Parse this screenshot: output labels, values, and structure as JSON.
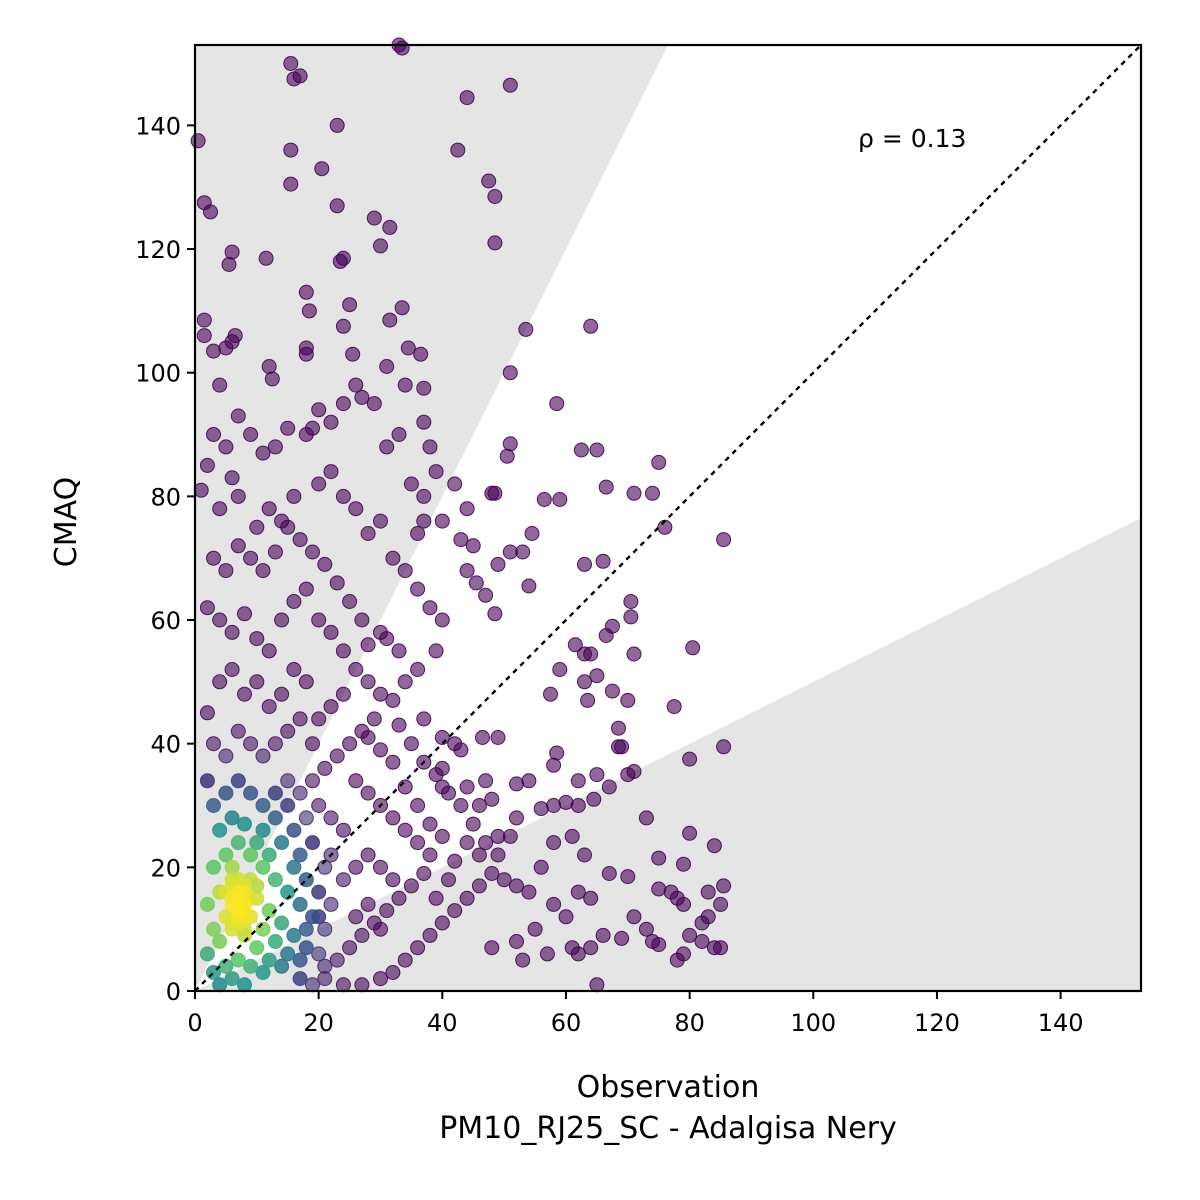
{
  "chart_data": {
    "type": "scatter",
    "title": "",
    "xlabel": "Observation",
    "xlabel_sub": "PM10_RJ25_SC - Adalgisa Nery",
    "ylabel": "CMAQ",
    "xlim": [
      0,
      153
    ],
    "ylim": [
      0,
      153
    ],
    "xticks": [
      0,
      20,
      40,
      60,
      80,
      100,
      120,
      140
    ],
    "yticks": [
      0,
      20,
      40,
      60,
      80,
      100,
      120,
      140
    ],
    "annotation": "ρ = 0.13",
    "identity_line": true,
    "factor_of_two_shading": true,
    "colormap": "viridis (point density)",
    "colors": {
      "low_density": "#440154",
      "mid_density": "#21918c",
      "high_density": "#fde725",
      "shading": "#e5e5e5"
    },
    "points": [
      [
        0.5,
        137.5
      ],
      [
        1.5,
        127.5
      ],
      [
        2.5,
        126
      ],
      [
        5.5,
        117.5
      ],
      [
        6,
        119.5
      ],
      [
        11.5,
        118.5
      ],
      [
        15.5,
        150
      ],
      [
        16,
        147.5
      ],
      [
        17,
        148
      ],
      [
        15.5,
        136
      ],
      [
        15.5,
        130.5
      ],
      [
        20.5,
        133
      ],
      [
        23,
        140
      ],
      [
        23,
        127
      ],
      [
        23.5,
        118
      ],
      [
        24,
        118.5
      ],
      [
        29,
        125
      ],
      [
        30,
        120.5
      ],
      [
        31.5,
        123.5
      ],
      [
        33,
        153
      ],
      [
        33.5,
        152.5
      ],
      [
        42.5,
        136
      ],
      [
        44,
        144.5
      ],
      [
        47.5,
        131
      ],
      [
        48.5,
        128.5
      ],
      [
        48.5,
        121
      ],
      [
        51,
        146.5
      ],
      [
        1.5,
        108.5
      ],
      [
        1.5,
        106
      ],
      [
        3,
        103.5
      ],
      [
        5,
        104
      ],
      [
        6,
        105
      ],
      [
        6.5,
        106
      ],
      [
        4,
        98
      ],
      [
        12,
        101
      ],
      [
        12.5,
        99
      ],
      [
        18,
        113
      ],
      [
        18.5,
        110
      ],
      [
        24,
        107.5
      ],
      [
        25,
        111
      ],
      [
        18,
        104
      ],
      [
        18,
        103
      ],
      [
        25.5,
        103
      ],
      [
        31.5,
        108.5
      ],
      [
        33.5,
        110.5
      ],
      [
        31,
        101
      ],
      [
        34.5,
        104
      ],
      [
        36.5,
        103
      ],
      [
        37,
        97.5
      ],
      [
        34,
        98
      ],
      [
        53.5,
        107
      ],
      [
        64,
        107.5
      ],
      [
        51,
        100
      ],
      [
        58.5,
        95
      ],
      [
        51,
        88.5
      ],
      [
        50.5,
        86.5
      ],
      [
        62.5,
        87.5
      ],
      [
        65,
        87.5
      ],
      [
        75,
        85.5
      ],
      [
        71,
        80.5
      ],
      [
        74,
        80.5
      ],
      [
        66.5,
        81.5
      ],
      [
        56.5,
        79.5
      ],
      [
        59,
        79.5
      ],
      [
        48,
        80.5
      ],
      [
        48.5,
        80.5
      ],
      [
        76,
        75
      ],
      [
        85.5,
        73
      ],
      [
        54.5,
        74
      ],
      [
        51,
        71
      ],
      [
        53,
        71
      ],
      [
        49,
        69
      ],
      [
        44,
        68
      ],
      [
        45.5,
        66
      ],
      [
        47,
        64
      ],
      [
        48.5,
        61
      ],
      [
        54,
        65.5
      ],
      [
        63,
        69
      ],
      [
        66,
        69.5
      ],
      [
        70.5,
        63
      ],
      [
        70.5,
        60.5
      ],
      [
        61.5,
        56
      ],
      [
        66.5,
        57.5
      ],
      [
        67.5,
        59
      ],
      [
        80.5,
        55.5
      ],
      [
        63,
        54.5
      ],
      [
        64,
        54.5
      ],
      [
        71,
        54.5
      ],
      [
        65,
        51
      ],
      [
        67.5,
        48.5
      ],
      [
        63,
        50
      ],
      [
        63.5,
        47
      ],
      [
        68.5,
        42.5
      ],
      [
        69,
        39.5
      ],
      [
        68.5,
        39.5
      ],
      [
        70,
        47
      ],
      [
        77.5,
        46
      ],
      [
        59,
        52
      ],
      [
        57.5,
        48
      ],
      [
        58.5,
        38.5
      ],
      [
        58,
        36.5
      ],
      [
        62,
        34
      ],
      [
        65,
        35
      ],
      [
        70,
        35
      ],
      [
        71,
        35.5
      ],
      [
        80,
        37.5
      ],
      [
        85.5,
        39.5
      ],
      [
        49,
        41
      ],
      [
        46.5,
        41
      ],
      [
        43,
        39
      ],
      [
        42,
        40
      ],
      [
        37,
        44
      ],
      [
        40,
        41
      ],
      [
        52,
        33.5
      ],
      [
        54,
        34
      ],
      [
        48,
        31
      ],
      [
        47,
        34
      ],
      [
        56,
        29.5
      ],
      [
        58,
        30
      ],
      [
        60,
        30.5
      ],
      [
        62,
        30
      ],
      [
        64.5,
        31
      ],
      [
        67,
        33
      ],
      [
        52,
        28
      ],
      [
        51,
        25
      ],
      [
        49,
        25
      ],
      [
        73,
        28
      ],
      [
        80,
        25.5
      ],
      [
        84,
        23.5
      ],
      [
        75,
        21.5
      ],
      [
        79,
        20.5
      ],
      [
        67,
        19
      ],
      [
        70,
        18.5
      ],
      [
        75,
        16.5
      ],
      [
        77,
        16
      ],
      [
        78,
        15
      ],
      [
        79,
        14
      ],
      [
        83,
        16
      ],
      [
        85.5,
        17
      ],
      [
        85,
        14
      ],
      [
        83,
        12
      ],
      [
        82,
        11
      ],
      [
        80,
        9
      ],
      [
        82,
        8
      ],
      [
        85,
        7
      ],
      [
        84,
        7
      ],
      [
        79,
        6
      ],
      [
        78,
        5
      ],
      [
        73,
        10
      ],
      [
        74,
        8
      ],
      [
        75,
        7.5
      ],
      [
        69,
        8.5
      ],
      [
        71,
        12
      ],
      [
        66,
        9
      ],
      [
        64,
        7
      ],
      [
        62,
        6
      ],
      [
        61,
        7
      ],
      [
        57,
        6
      ],
      [
        55,
        10
      ],
      [
        52,
        8
      ],
      [
        53,
        5
      ],
      [
        48,
        7
      ],
      [
        65,
        1
      ],
      [
        56,
        20
      ],
      [
        58,
        24
      ],
      [
        61,
        25
      ],
      [
        63,
        22
      ],
      [
        58,
        14
      ],
      [
        60,
        12
      ],
      [
        62,
        16
      ],
      [
        64,
        15
      ],
      [
        54,
        16
      ],
      [
        52,
        17
      ],
      [
        50,
        18
      ],
      [
        46,
        22
      ],
      [
        44,
        24
      ],
      [
        46,
        30
      ],
      [
        44,
        33
      ],
      [
        40,
        33
      ],
      [
        40,
        36
      ],
      [
        42,
        82
      ],
      [
        44,
        78
      ],
      [
        45,
        72
      ],
      [
        43,
        73
      ],
      [
        40,
        76
      ],
      [
        37,
        76
      ],
      [
        36,
        74
      ],
      [
        37,
        80
      ],
      [
        39,
        84
      ],
      [
        35,
        82
      ],
      [
        38,
        88
      ],
      [
        37,
        92
      ],
      [
        33,
        90
      ],
      [
        31,
        88
      ],
      [
        29,
        95
      ],
      [
        27,
        96
      ],
      [
        26,
        98
      ],
      [
        24,
        95
      ],
      [
        22,
        92
      ],
      [
        20,
        94
      ],
      [
        19,
        91
      ],
      [
        18,
        90
      ],
      [
        15,
        91
      ],
      [
        13,
        88
      ],
      [
        11,
        87
      ],
      [
        9,
        90
      ],
      [
        7,
        93
      ],
      [
        5,
        88
      ],
      [
        3,
        90
      ],
      [
        2,
        85
      ],
      [
        1,
        81
      ],
      [
        4,
        78
      ],
      [
        6,
        83
      ],
      [
        7,
        80
      ],
      [
        10,
        75
      ],
      [
        12,
        78
      ],
      [
        14,
        76
      ],
      [
        16,
        80
      ],
      [
        20,
        82
      ],
      [
        22,
        84
      ],
      [
        24,
        80
      ],
      [
        26,
        78
      ],
      [
        28,
        74
      ],
      [
        30,
        76
      ],
      [
        32,
        70
      ],
      [
        34,
        68
      ],
      [
        36,
        65
      ],
      [
        38,
        62
      ],
      [
        40,
        60
      ],
      [
        39,
        55
      ],
      [
        36,
        52
      ],
      [
        34,
        50
      ],
      [
        32,
        47
      ],
      [
        33,
        43
      ],
      [
        35,
        40
      ],
      [
        37,
        37
      ],
      [
        39,
        35
      ],
      [
        41,
        32
      ],
      [
        43,
        30
      ],
      [
        45,
        27
      ],
      [
        47,
        24
      ],
      [
        49,
        22
      ],
      [
        48,
        19
      ],
      [
        46,
        17
      ],
      [
        44,
        15
      ],
      [
        42,
        13
      ],
      [
        40,
        11
      ],
      [
        38,
        9
      ],
      [
        36,
        7
      ],
      [
        34,
        5
      ],
      [
        32,
        3
      ],
      [
        30,
        2
      ],
      [
        27,
        1
      ],
      [
        24,
        1
      ],
      [
        21,
        2
      ],
      [
        19,
        1
      ],
      [
        17,
        2
      ],
      [
        28,
        56
      ],
      [
        31,
        57
      ],
      [
        33,
        55
      ],
      [
        30,
        58
      ],
      [
        27,
        60
      ],
      [
        25,
        63
      ],
      [
        23,
        66
      ],
      [
        21,
        69
      ],
      [
        19,
        71
      ],
      [
        17,
        73
      ],
      [
        15,
        75
      ],
      [
        13,
        71
      ],
      [
        11,
        68
      ],
      [
        9,
        70
      ],
      [
        7,
        72
      ],
      [
        5,
        68
      ],
      [
        3,
        70
      ],
      [
        2,
        62
      ],
      [
        4,
        60
      ],
      [
        6,
        58
      ],
      [
        8,
        61
      ],
      [
        10,
        57
      ],
      [
        12,
        55
      ],
      [
        14,
        60
      ],
      [
        16,
        63
      ],
      [
        18,
        65
      ],
      [
        20,
        60
      ],
      [
        22,
        58
      ],
      [
        24,
        55
      ],
      [
        26,
        52
      ],
      [
        28,
        50
      ],
      [
        30,
        48
      ],
      [
        29,
        44
      ],
      [
        27,
        42
      ],
      [
        25,
        40
      ],
      [
        23,
        38
      ],
      [
        21,
        36
      ],
      [
        19,
        34
      ],
      [
        17,
        32
      ],
      [
        15,
        30
      ],
      [
        13,
        28
      ],
      [
        11,
        26
      ],
      [
        26,
        34
      ],
      [
        28,
        32
      ],
      [
        30,
        30
      ],
      [
        32,
        28
      ],
      [
        34,
        26
      ],
      [
        36,
        24
      ],
      [
        38,
        22
      ],
      [
        37,
        19
      ],
      [
        35,
        17
      ],
      [
        33,
        15
      ],
      [
        31,
        13
      ],
      [
        29,
        11
      ],
      [
        27,
        9
      ],
      [
        25,
        7
      ],
      [
        23,
        5
      ],
      [
        21,
        4
      ],
      [
        34,
        33
      ],
      [
        32,
        37
      ],
      [
        30,
        39
      ],
      [
        28,
        41
      ],
      [
        36,
        30
      ],
      [
        38,
        27
      ],
      [
        40,
        25
      ],
      [
        42,
        21
      ],
      [
        41,
        18
      ],
      [
        39,
        15
      ],
      [
        24,
        48
      ],
      [
        22,
        46
      ],
      [
        20,
        44
      ],
      [
        18,
        50
      ],
      [
        16,
        52
      ],
      [
        14,
        48
      ],
      [
        12,
        46
      ],
      [
        10,
        50
      ],
      [
        8,
        48
      ],
      [
        6,
        52
      ],
      [
        4,
        50
      ],
      [
        2,
        45
      ],
      [
        3,
        40
      ],
      [
        5,
        38
      ],
      [
        7,
        42
      ],
      [
        9,
        40
      ],
      [
        11,
        38
      ],
      [
        13,
        40
      ],
      [
        15,
        42
      ],
      [
        17,
        44
      ],
      [
        19,
        40
      ],
      [
        21,
        20
      ],
      [
        19,
        24
      ],
      [
        17,
        22
      ],
      [
        22,
        14
      ],
      [
        20,
        12
      ],
      [
        18,
        10
      ],
      [
        24,
        18
      ],
      [
        26,
        20
      ],
      [
        28,
        22
      ],
      [
        30,
        20
      ],
      [
        32,
        18
      ],
      [
        26,
        12
      ],
      [
        28,
        14
      ],
      [
        30,
        10
      ],
      [
        24,
        26
      ],
      [
        22,
        28
      ],
      [
        20,
        30
      ],
      [
        18,
        28
      ],
      [
        16,
        26
      ],
      [
        2,
        34
      ],
      [
        3,
        30
      ],
      [
        5,
        32
      ],
      [
        7,
        34
      ],
      [
        9,
        32
      ],
      [
        11,
        30
      ],
      [
        13,
        32
      ],
      [
        15,
        34
      ],
      [
        4,
        26
      ],
      [
        6,
        28
      ],
      [
        8,
        27
      ],
      [
        10,
        24
      ],
      [
        12,
        22
      ],
      [
        14,
        24
      ],
      [
        16,
        20
      ],
      [
        18,
        18
      ],
      [
        20,
        16
      ],
      [
        22,
        22
      ],
      [
        3,
        20
      ],
      [
        5,
        22
      ],
      [
        7,
        24
      ],
      [
        9,
        22
      ],
      [
        11,
        20
      ],
      [
        13,
        18
      ],
      [
        15,
        16
      ],
      [
        17,
        14
      ],
      [
        19,
        12
      ],
      [
        21,
        10
      ],
      [
        2,
        14
      ],
      [
        4,
        16
      ],
      [
        6,
        18
      ],
      [
        8,
        17
      ],
      [
        10,
        15
      ],
      [
        12,
        13
      ],
      [
        14,
        11
      ],
      [
        16,
        9
      ],
      [
        18,
        7
      ],
      [
        20,
        6
      ],
      [
        3,
        10
      ],
      [
        5,
        12
      ],
      [
        7,
        14
      ],
      [
        9,
        12
      ],
      [
        11,
        10
      ],
      [
        13,
        8
      ],
      [
        15,
        6
      ],
      [
        17,
        5
      ],
      [
        2,
        6
      ],
      [
        4,
        8
      ],
      [
        6,
        10
      ],
      [
        8,
        9
      ],
      [
        10,
        7
      ],
      [
        12,
        5
      ],
      [
        14,
        4
      ],
      [
        3,
        3
      ],
      [
        5,
        4
      ],
      [
        7,
        5
      ],
      [
        9,
        4
      ],
      [
        11,
        3
      ],
      [
        6,
        2
      ],
      [
        8,
        1
      ],
      [
        4,
        1
      ],
      [
        6,
        20
      ],
      [
        7,
        18
      ],
      [
        8,
        16
      ],
      [
        7,
        15
      ],
      [
        6,
        14
      ],
      [
        8,
        13
      ],
      [
        9,
        15
      ],
      [
        7,
        12
      ],
      [
        6,
        11
      ],
      [
        8,
        10
      ],
      [
        5,
        16
      ],
      [
        9,
        18
      ],
      [
        10,
        17
      ],
      [
        6,
        17
      ],
      [
        7,
        13
      ],
      [
        8,
        14
      ],
      [
        7,
        16
      ],
      [
        6,
        15
      ],
      [
        8,
        12
      ],
      [
        7,
        11
      ]
    ]
  }
}
